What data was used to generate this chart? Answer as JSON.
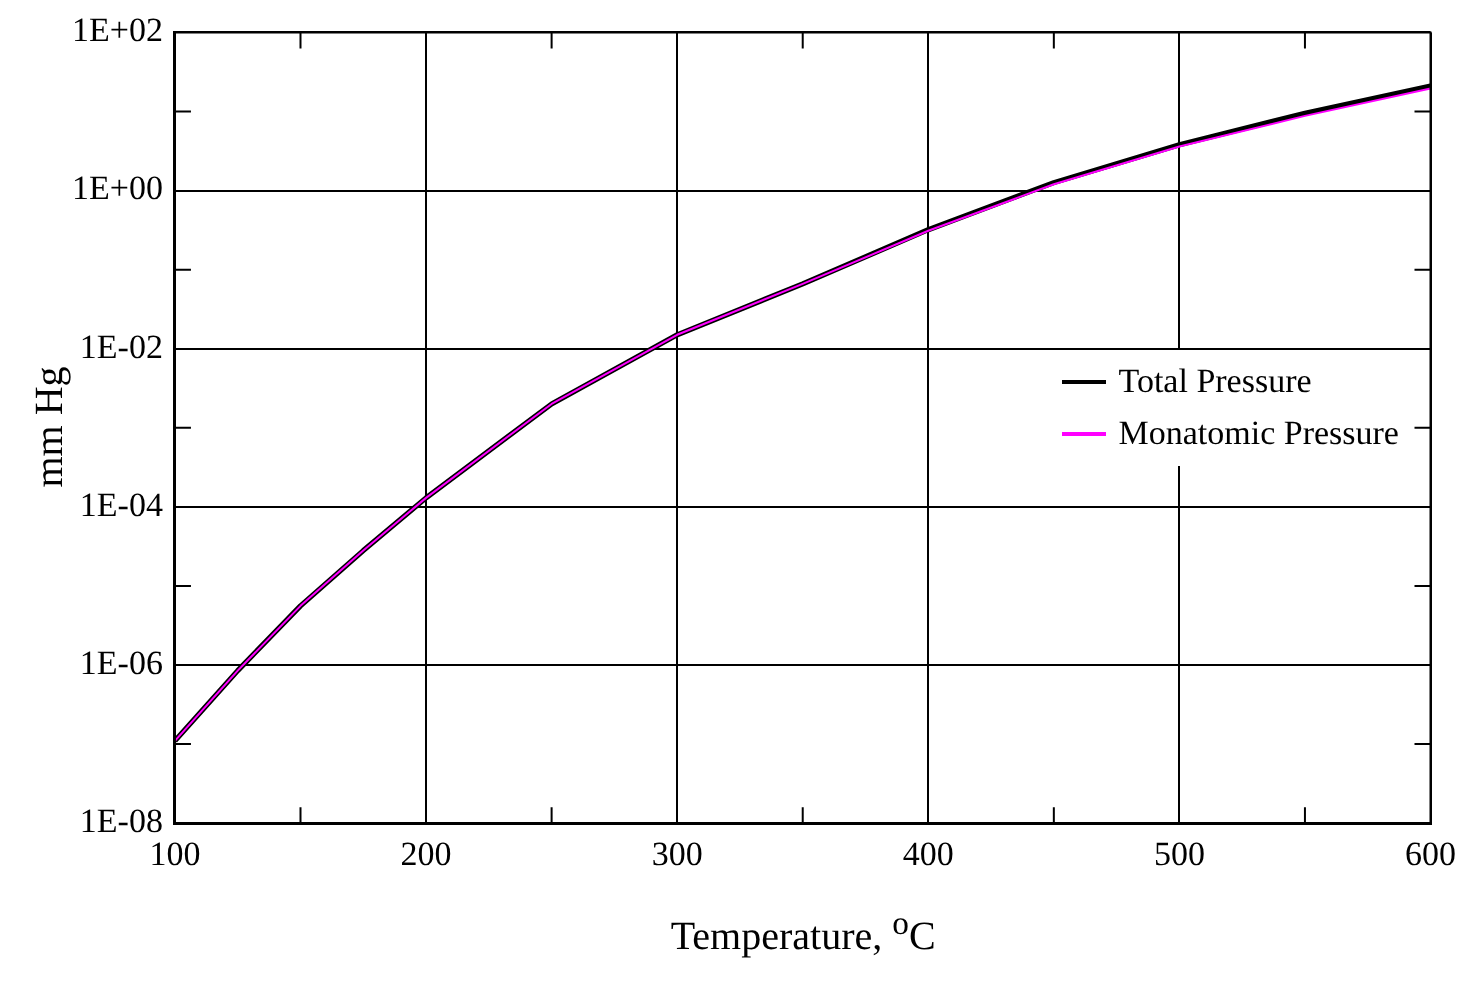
{
  "chart_data": {
    "type": "line",
    "xlabel": "Temperature, $^{o}$C",
    "ylabel": "mm Hg",
    "x": [
      100,
      125,
      150,
      175,
      200,
      250,
      300,
      350,
      400,
      450,
      500,
      550,
      600
    ],
    "series": [
      {
        "name": "Total Pressure",
        "color": "#000000",
        "values": [
          1.1e-07,
          8.5e-07,
          5.6e-06,
          2.8e-05,
          0.00013,
          0.002,
          0.015,
          0.066,
          0.32,
          1.26,
          3.8,
          9.5,
          21
        ]
      },
      {
        "name": "Monatomic Pressure",
        "color": "#ff00ff",
        "values": [
          1.1e-07,
          8.5e-07,
          5.6e-06,
          2.8e-05,
          0.00013,
          0.002,
          0.015,
          0.066,
          0.31,
          1.2,
          3.6,
          8.8,
          19.5
        ]
      }
    ],
    "xlim": [
      100,
      600
    ],
    "ylim": [
      1e-08,
      100
    ],
    "xticks": [
      100,
      {
        "value": 150,
        "label": null
      },
      200,
      {
        "value": 250,
        "label": null
      },
      300,
      {
        "value": 350,
        "label": null
      },
      400,
      {
        "value": 450,
        "label": null
      },
      500,
      {
        "value": 550,
        "label": null
      },
      600
    ],
    "yticks": [
      {
        "value": 1e-08,
        "label": "1E-08"
      },
      {
        "value": 1e-07,
        "label": null
      },
      {
        "value": 1e-06,
        "label": "1E-06"
      },
      {
        "value": 1e-05,
        "label": null
      },
      {
        "value": 0.0001,
        "label": "1E-04"
      },
      {
        "value": 0.001,
        "label": null
      },
      {
        "value": 0.01,
        "label": "1E-02"
      },
      {
        "value": 0.1,
        "label": null
      },
      {
        "value": 1,
        "label": "1E+00"
      },
      {
        "value": 10,
        "label": null
      },
      {
        "value": 100,
        "label": "1E+02"
      }
    ],
    "log": "y",
    "grid": true,
    "legend": "right",
    "marker": "none",
    "line_style": "solid"
  }
}
